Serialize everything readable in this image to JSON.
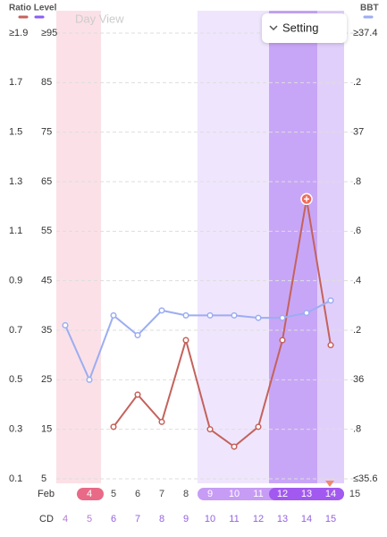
{
  "chart_data": {
    "type": "line",
    "view_label": "Day View",
    "button": "Setting",
    "month": "Feb",
    "cd_label": "CD",
    "dates": [
      null,
      4,
      5,
      6,
      7,
      8,
      9,
      10,
      11,
      12,
      13,
      14,
      15
    ],
    "cycle_days": [
      4,
      5,
      6,
      7,
      8,
      9,
      10,
      11,
      12,
      13,
      14,
      15,
      null
    ],
    "series": [
      {
        "name": "Ratio Level",
        "color": "#c4625c",
        "values": [
          null,
          null,
          0.31,
          0.44,
          0.33,
          0.66,
          0.3,
          0.23,
          0.31,
          0.66,
          1.23,
          0.64,
          null
        ]
      },
      {
        "name": "BBT",
        "color": "#9cadf2",
        "axis": "y2",
        "values": [
          36.22,
          36.0,
          36.26,
          36.18,
          36.28,
          36.26,
          36.26,
          36.26,
          36.25,
          36.25,
          36.27,
          36.32,
          null
        ]
      }
    ],
    "ylim": [
      0.1,
      1.9
    ],
    "yticks": [
      {
        "value": 1.9,
        "label": "≥1.9"
      },
      1.7,
      1.5,
      1.3,
      1.1,
      0.9,
      0.7,
      0.5,
      0.3,
      0.1
    ],
    "ylim_alt": [
      5,
      95
    ],
    "yticks_alt": [
      {
        "value": 95,
        "label": "≥95"
      },
      85,
      75,
      65,
      55,
      45,
      35,
      25,
      15,
      5
    ],
    "y2lim": [
      35.6,
      37.4
    ],
    "y2ticks": [
      {
        "value": 37.4,
        "label": "≥37.4"
      },
      {
        "value": 37.2,
        "label": ".2"
      },
      37,
      {
        "value": 36.8,
        "label": ".8"
      },
      {
        "value": 36.6,
        "label": ".6"
      },
      {
        "value": 36.4,
        "label": ".4"
      },
      {
        "value": 36.2,
        "label": ".2"
      },
      36,
      {
        "value": 35.8,
        "label": ".8"
      },
      {
        "value": 35.6,
        "label": "≤35.6"
      }
    ],
    "grid": true
  }
}
